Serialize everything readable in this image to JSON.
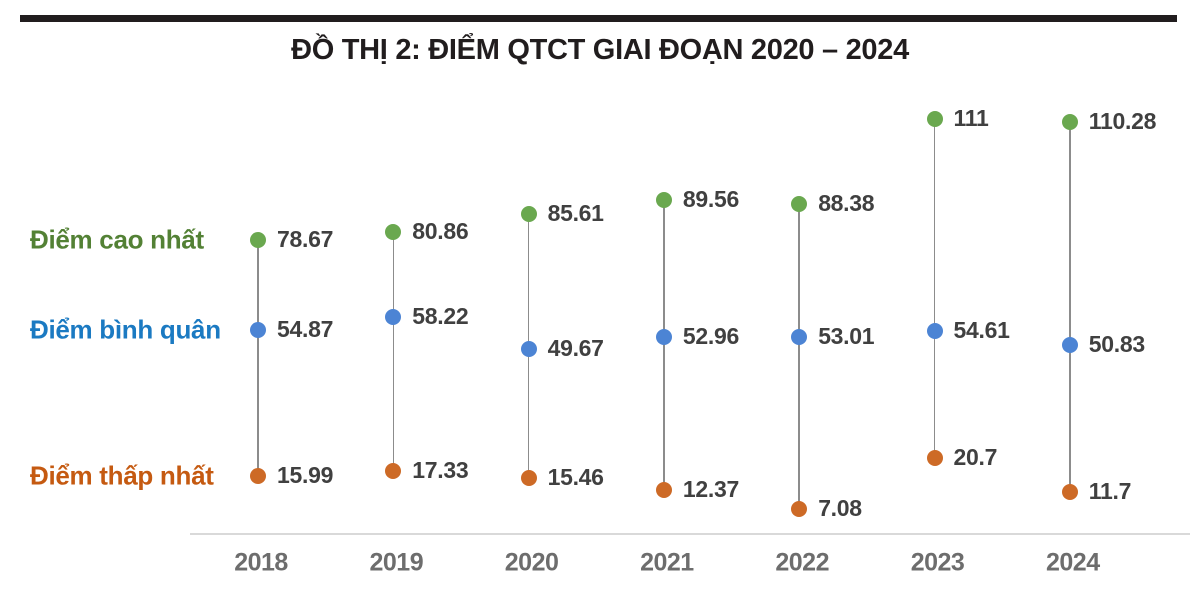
{
  "chart_data": {
    "type": "scatter",
    "subtype": "vertical dot-range (lollipop) chart: highest / average / lowest score per year",
    "title": "ĐỒ THỊ 2: ĐIỂM QTCT GIAI ĐOẠN 2020 – 2024",
    "xlabel": "",
    "ylabel": "",
    "categories": [
      "2018",
      "2019",
      "2020",
      "2021",
      "2022",
      "2023",
      "2024"
    ],
    "series": [
      {
        "key": "highest",
        "name": "Điểm cao nhất",
        "dot_color": "#6aa84f",
        "text_color": "#538135",
        "values": [
          78.67,
          80.86,
          85.61,
          89.56,
          88.38,
          111,
          110.28
        ],
        "labels": [
          "78.67",
          "80.86",
          "85.61",
          "89.56",
          "88.38",
          "111",
          "110.28"
        ]
      },
      {
        "key": "average",
        "name": "Điểm bình quân",
        "dot_color": "#4c84d4",
        "text_color": "#1b7ac2",
        "values": [
          54.87,
          58.22,
          49.67,
          52.96,
          53.01,
          54.61,
          50.83
        ],
        "labels": [
          "54.87",
          "58.22",
          "49.67",
          "52.96",
          "53.01",
          "54.61",
          "50.83"
        ]
      },
      {
        "key": "lowest",
        "name": "Điểm thấp nhất",
        "dot_color": "#cd6a26",
        "text_color": "#c55a11",
        "values": [
          15.99,
          17.33,
          15.46,
          12.37,
          7.08,
          20.7,
          11.7
        ],
        "labels": [
          "15.99",
          "17.33",
          "15.46",
          "12.37",
          "7.08",
          "20.7",
          "11.7"
        ]
      }
    ],
    "ylim": [
      0,
      120
    ],
    "grid": false,
    "legend_position": "left",
    "value_label_color": "#404040",
    "axis_tick_color": "#6d6d6d",
    "axis_line_color": "#d9d9d9",
    "stem_color": "#8c8c8c"
  }
}
